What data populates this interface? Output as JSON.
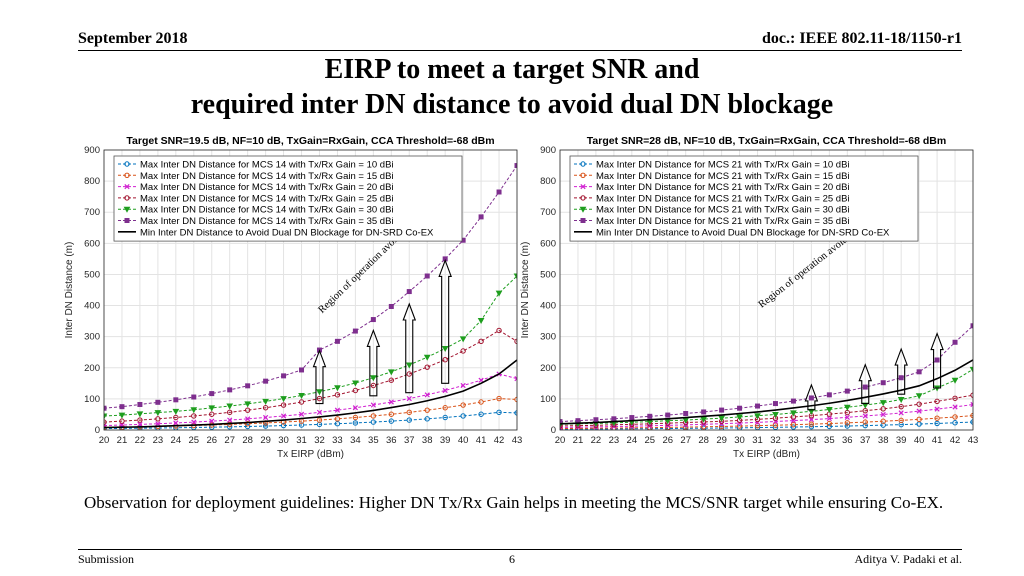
{
  "header": {
    "date": "September 2018",
    "doc": "doc.: IEEE 802.11-18/1150-r1"
  },
  "title_line1": "EIRP to meet a target SNR and",
  "title_line2": "required inter DN distance to avoid dual DN blockage",
  "observation": "Observation for deployment guidelines: Higher DN Tx/Rx Gain helps in meeting the MCS/SNR target while ensuring Co-EX.",
  "footer": {
    "left": "Submission",
    "page": "6",
    "author": "Aditya V. Padaki et al."
  },
  "colors": {
    "g10": "#0072BD",
    "g15": "#D95319",
    "g20": "#D01FD0",
    "g25": "#A2142F",
    "g30": "#1E9E1E",
    "g35": "#7E2F8E",
    "min": "#000000"
  },
  "chart_data": [
    {
      "type": "line",
      "title": "Target SNR=19.5 dB, NF=10 dB, TxGain=RxGain, CCA Threshold=-68 dBm",
      "xlabel": "Tx EIRP (dBm)",
      "ylabel": "Inter DN Distance (m)",
      "xlim": [
        20,
        43
      ],
      "ylim": [
        0,
        900
      ],
      "yticks": [
        0,
        100,
        200,
        300,
        400,
        500,
        600,
        700,
        800,
        900
      ],
      "grid": true,
      "legend_position": "top-left",
      "annotation": "Region of operation avoid dual DN blockage",
      "x": [
        20,
        21,
        22,
        23,
        24,
        25,
        26,
        27,
        28,
        29,
        30,
        31,
        32,
        33,
        34,
        35,
        36,
        37,
        38,
        39,
        40,
        41,
        42,
        43
      ],
      "series": [
        {
          "name": "Max Inter DN Distance for MCS 14 with Tx/Rx Gain = 10 dBi",
          "color_key": "g10",
          "marker": "o",
          "values": [
            4.5,
            5.1,
            5.7,
            6.4,
            7.2,
            8.0,
            9.0,
            10.1,
            11.3,
            12.7,
            14.3,
            16.0,
            18.0,
            20.2,
            22.6,
            25.4,
            28.5,
            31.9,
            35.8,
            40.2,
            45.1,
            50.6,
            56.8,
            55
          ]
        },
        {
          "name": "Max Inter DN Distance for MCS 14 with Tx/Rx Gain = 15 dBi",
          "color_key": "g15",
          "marker": "o",
          "values": [
            8.0,
            9.0,
            10.1,
            11.3,
            12.7,
            14.3,
            16.0,
            18.0,
            20.2,
            22.6,
            25.4,
            28.5,
            31.9,
            35.8,
            40.2,
            45.1,
            50.6,
            56.8,
            63.7,
            71.5,
            80.2,
            90.0,
            101,
            98
          ]
        },
        {
          "name": "Max Inter DN Distance for MCS 14 with Tx/Rx Gain = 20 dBi",
          "color_key": "g20",
          "marker": "x",
          "values": [
            14.3,
            16.0,
            18.0,
            20.2,
            22.6,
            25.4,
            28.5,
            31.9,
            35.8,
            40.2,
            45.1,
            50.6,
            56.8,
            63.7,
            71.5,
            80.2,
            90.0,
            101,
            113,
            127,
            143,
            160,
            180,
            165
          ]
        },
        {
          "name": "Max Inter DN Distance for MCS 14 with Tx/Rx Gain = 25 dBi",
          "color_key": "g25",
          "marker": "o",
          "values": [
            25.4,
            28.5,
            31.9,
            35.8,
            40.2,
            45.1,
            50.6,
            56.8,
            63.7,
            71.5,
            80.2,
            90.0,
            101,
            113,
            127,
            143,
            160,
            180,
            202,
            226,
            254,
            285,
            320,
            285
          ]
        },
        {
          "name": "Max Inter DN Distance for MCS 14 with Tx/Rx Gain = 30 dBi",
          "color_key": "g30",
          "marker": "v",
          "values": [
            45,
            48,
            52,
            56,
            60,
            65,
            71,
            77,
            84,
            92,
            101,
            111,
            123,
            136,
            151,
            168,
            187,
            209,
            234,
            262,
            293,
            352,
            440,
            495
          ]
        },
        {
          "name": "Max Inter DN Distance for MCS 14 with Tx/Rx Gain = 35 dBi",
          "color_key": "g35",
          "marker": "s",
          "values": [
            70,
            75,
            82,
            89,
            97,
            106,
            117,
            129,
            142,
            157,
            174,
            193,
            257,
            285,
            318,
            355,
            397,
            445,
            495,
            550,
            610,
            685,
            765,
            850
          ]
        },
        {
          "name": "Min Inter DN Distance to Avoid Dual DN Blockage for DN-SRD Co-EX",
          "color_key": "min",
          "marker": "none",
          "values": [
            8,
            9,
            10,
            12,
            14,
            16,
            18,
            21,
            24,
            28,
            32,
            37,
            42,
            48,
            55,
            63,
            72,
            82,
            94,
            108,
            125,
            150,
            180,
            225
          ]
        }
      ]
    },
    {
      "type": "line",
      "title": "Target SNR=28 dB, NF=10 dB, TxGain=RxGain, CCA Threshold=-68 dBm",
      "xlabel": "Tx EIRP (dBm)",
      "ylabel": "Inter DN Distance (m)",
      "xlim": [
        20,
        43
      ],
      "ylim": [
        0,
        900
      ],
      "yticks": [
        0,
        100,
        200,
        300,
        400,
        500,
        600,
        700,
        800,
        900
      ],
      "grid": true,
      "legend_position": "top-left",
      "annotation": "Region of operation avoid dual DN blockage",
      "x": [
        20,
        21,
        22,
        23,
        24,
        25,
        26,
        27,
        28,
        29,
        30,
        31,
        32,
        33,
        34,
        35,
        36,
        37,
        38,
        39,
        40,
        41,
        42,
        43
      ],
      "series": [
        {
          "name": "Max Inter DN Distance for MCS 21 with Tx/Rx Gain = 10 dBi",
          "color_key": "g10",
          "marker": "o",
          "values": [
            2.6,
            2.9,
            3.2,
            3.5,
            3.9,
            4.3,
            4.8,
            5.3,
            5.8,
            6.4,
            7.0,
            7.8,
            8.6,
            9.5,
            10.5,
            11.6,
            12.8,
            14.2,
            15.7,
            17.3,
            19.1,
            21.1,
            23.3,
            25.8
          ]
        },
        {
          "name": "Max Inter DN Distance for MCS 21 with Tx/Rx Gain = 15 dBi",
          "color_key": "g15",
          "marker": "o",
          "values": [
            4.6,
            5.1,
            5.6,
            6.2,
            6.9,
            7.6,
            8.4,
            9.3,
            10.3,
            11.4,
            12.6,
            13.9,
            15.4,
            17.0,
            18.8,
            20.8,
            23.0,
            25.4,
            28.1,
            31.0,
            34.3,
            37.9,
            41.9,
            46.3
          ]
        },
        {
          "name": "Max Inter DN Distance for MCS 21 with Tx/Rx Gain = 20 dBi",
          "color_key": "g20",
          "marker": "x",
          "values": [
            8.2,
            9.1,
            10.0,
            11.1,
            12.2,
            13.5,
            15.0,
            16.5,
            18.3,
            20.2,
            22.3,
            24.7,
            27.3,
            30.1,
            33.3,
            36.8,
            40.7,
            45.0,
            49.7,
            54.9,
            60.7,
            67.1,
            74.1,
            81.9
          ]
        },
        {
          "name": "Max Inter DN Distance for MCS 21 with Tx/Rx Gain = 25 dBi",
          "color_key": "g25",
          "marker": "o",
          "values": [
            13,
            14,
            15,
            17,
            18,
            20,
            22,
            24,
            26,
            28,
            31,
            34,
            38,
            42,
            46,
            51,
            56,
            62,
            68,
            75,
            83,
            92,
            102,
            112
          ]
        },
        {
          "name": "Max Inter DN Distance for MCS 21 with Tx/Rx Gain = 30 dBi",
          "color_key": "g30",
          "marker": "v",
          "values": [
            18,
            20,
            21,
            23,
            25,
            27,
            30,
            32,
            35,
            38,
            42,
            46,
            50,
            55,
            60,
            66,
            73,
            80,
            88,
            98,
            110,
            135,
            160,
            195
          ]
        },
        {
          "name": "Max Inter DN Distance for MCS 21 with Tx/Rx Gain = 35 dBi",
          "color_key": "g35",
          "marker": "s",
          "values": [
            27,
            30,
            33,
            36,
            40,
            44,
            48,
            53,
            58,
            64,
            70,
            77,
            85,
            93,
            103,
            113,
            125,
            138,
            152,
            168,
            187,
            225,
            282,
            335
          ]
        },
        {
          "name": "Min Inter DN Distance to Avoid Dual DN Blockage for DN-SRD Co-EX",
          "color_key": "min",
          "marker": "none",
          "values": [
            20,
            22,
            24,
            27,
            30,
            33,
            36,
            40,
            44,
            48,
            53,
            58,
            64,
            71,
            78,
            86,
            95,
            105,
            116,
            128,
            142,
            165,
            192,
            225
          ]
        }
      ]
    }
  ]
}
